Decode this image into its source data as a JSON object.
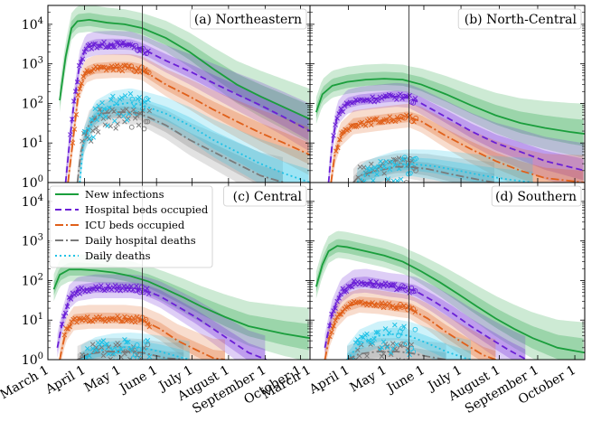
{
  "chart_data": {
    "type": "line",
    "yscale": "log",
    "ylim": [
      1,
      30000
    ],
    "xlim_days": [
      0,
      222
    ],
    "yticks": [
      {
        "v": 1,
        "label": "10",
        "exp": "0"
      },
      {
        "v": 10,
        "label": "10",
        "exp": "1"
      },
      {
        "v": 100,
        "label": "10",
        "exp": "2"
      },
      {
        "v": 1000,
        "label": "10",
        "exp": "3"
      },
      {
        "v": 10000,
        "label": "10",
        "exp": "4"
      }
    ],
    "xticks": [
      {
        "day": 0,
        "label": "March 1"
      },
      {
        "day": 31,
        "label": "April 1"
      },
      {
        "day": 61,
        "label": "May 1"
      },
      {
        "day": 92,
        "label": "June 1"
      },
      {
        "day": 122,
        "label": "July 1"
      },
      {
        "day": 153,
        "label": "August 1"
      },
      {
        "day": 184,
        "label": "September 1"
      },
      {
        "day": 214,
        "label": "October 1"
      }
    ],
    "vline_day": 80,
    "legend": [
      {
        "key": "inf",
        "label": "New infections",
        "color": "#1a9e3c",
        "dash": ""
      },
      {
        "key": "hosp",
        "label": "Hospital beds occupied",
        "color": "#6a1fd6",
        "dash": "7,4"
      },
      {
        "key": "icu",
        "label": "ICU beds occupied",
        "color": "#e0601a",
        "dash": "9,3,2,3"
      },
      {
        "key": "dhosp",
        "label": "Daily hospital deaths",
        "color": "#7a7a7a",
        "dash": "9,3,2,3"
      },
      {
        "key": "dd",
        "label": "Daily deaths",
        "color": "#1fc2e6",
        "dash": "2,3"
      }
    ],
    "panels": [
      {
        "title": "(a) Northeastern",
        "series": {
          "inf": [
            [
              10,
              120
            ],
            [
              15,
              1500
            ],
            [
              20,
              8000
            ],
            [
              25,
              12000
            ],
            [
              35,
              13000
            ],
            [
              50,
              11000
            ],
            [
              65,
              10000
            ],
            [
              80,
              8000
            ],
            [
              100,
              4500
            ],
            [
              120,
              2000
            ],
            [
              140,
              750
            ],
            [
              160,
              300
            ],
            [
              180,
              150
            ],
            [
              200,
              80
            ],
            [
              222,
              40
            ]
          ],
          "hosp": [
            [
              15,
              1
            ],
            [
              18,
              8
            ],
            [
              22,
              100
            ],
            [
              27,
              1000
            ],
            [
              32,
              2500
            ],
            [
              40,
              3000
            ],
            [
              55,
              3100
            ],
            [
              70,
              3000
            ],
            [
              80,
              2400
            ],
            [
              100,
              1200
            ],
            [
              120,
              650
            ],
            [
              140,
              330
            ],
            [
              160,
              170
            ],
            [
              180,
              90
            ],
            [
              200,
              45
            ],
            [
              222,
              20
            ]
          ],
          "icu": [
            [
              17,
              1
            ],
            [
              21,
              10
            ],
            [
              26,
              200
            ],
            [
              32,
              600
            ],
            [
              40,
              750
            ],
            [
              55,
              800
            ],
            [
              70,
              800
            ],
            [
              80,
              700
            ],
            [
              100,
              300
            ],
            [
              120,
              150
            ],
            [
              140,
              70
            ],
            [
              160,
              35
            ],
            [
              180,
              18
            ],
            [
              200,
              10
            ],
            [
              222,
              5
            ]
          ],
          "dhosp": [
            [
              25,
              1
            ],
            [
              28,
              6
            ],
            [
              35,
              30
            ],
            [
              45,
              55
            ],
            [
              55,
              60
            ],
            [
              65,
              60
            ],
            [
              75,
              58
            ],
            [
              85,
              45
            ],
            [
              100,
              28
            ],
            [
              120,
              12
            ],
            [
              140,
              6
            ],
            [
              160,
              3
            ],
            [
              180,
              1.5
            ],
            [
              200,
              1
            ]
          ],
          "dd": [
            [
              27,
              1
            ],
            [
              30,
              10
            ],
            [
              40,
              50
            ],
            [
              55,
              90
            ],
            [
              70,
              105
            ],
            [
              80,
              90
            ],
            [
              100,
              55
            ],
            [
              120,
              28
            ],
            [
              140,
              12
            ],
            [
              160,
              6
            ],
            [
              180,
              3
            ],
            [
              200,
              1.7
            ],
            [
              222,
              1
            ]
          ]
        }
      },
      {
        "title": "(b) North-Central",
        "series": {
          "inf": [
            [
              5,
              60
            ],
            [
              10,
              170
            ],
            [
              18,
              280
            ],
            [
              30,
              350
            ],
            [
              45,
              400
            ],
            [
              60,
              420
            ],
            [
              75,
              400
            ],
            [
              90,
              300
            ],
            [
              110,
              170
            ],
            [
              130,
              90
            ],
            [
              150,
              50
            ],
            [
              170,
              32
            ],
            [
              190,
              24
            ],
            [
              210,
              19
            ],
            [
              222,
              17
            ]
          ],
          "hosp": [
            [
              15,
              1
            ],
            [
              18,
              10
            ],
            [
              22,
              50
            ],
            [
              30,
              100
            ],
            [
              40,
              120
            ],
            [
              50,
              130
            ],
            [
              60,
              140
            ],
            [
              70,
              150
            ],
            [
              80,
              140
            ],
            [
              90,
              100
            ],
            [
              110,
              45
            ],
            [
              130,
              20
            ],
            [
              150,
              10
            ],
            [
              170,
              6
            ],
            [
              190,
              3.5
            ],
            [
              222,
              2
            ]
          ],
          "icu": [
            [
              17,
              1
            ],
            [
              20,
              5
            ],
            [
              25,
              15
            ],
            [
              35,
              30
            ],
            [
              50,
              35
            ],
            [
              65,
              40
            ],
            [
              80,
              45
            ],
            [
              90,
              35
            ],
            [
              110,
              15
            ],
            [
              130,
              7
            ],
            [
              150,
              3.5
            ],
            [
              170,
              2
            ],
            [
              190,
              1.3
            ],
            [
              222,
              1
            ]
          ],
          "dhosp": [
            [
              35,
              1
            ],
            [
              40,
              1.5
            ],
            [
              55,
              2
            ],
            [
              70,
              2.5
            ],
            [
              80,
              2.5
            ],
            [
              95,
              2.2
            ],
            [
              115,
              1.6
            ],
            [
              135,
              1.2
            ],
            [
              150,
              1
            ]
          ],
          "dd": [
            [
              38,
              1
            ],
            [
              45,
              1.5
            ],
            [
              55,
              2
            ],
            [
              70,
              2.8
            ],
            [
              80,
              3
            ],
            [
              100,
              2.6
            ],
            [
              120,
              2
            ],
            [
              140,
              1.5
            ],
            [
              160,
              1.2
            ],
            [
              180,
              1
            ]
          ]
        }
      },
      {
        "title": "(c) Central",
        "series": {
          "inf": [
            [
              5,
              60
            ],
            [
              10,
              140
            ],
            [
              18,
              190
            ],
            [
              28,
              190
            ],
            [
              40,
              180
            ],
            [
              55,
              160
            ],
            [
              70,
              130
            ],
            [
              85,
              95
            ],
            [
              100,
              60
            ],
            [
              115,
              37
            ],
            [
              130,
              22
            ],
            [
              150,
              12
            ],
            [
              170,
              7
            ],
            [
              200,
              4.5
            ],
            [
              222,
              3.5
            ]
          ],
          "hosp": [
            [
              8,
              2
            ],
            [
              12,
              8
            ],
            [
              18,
              35
            ],
            [
              25,
              55
            ],
            [
              40,
              65
            ],
            [
              55,
              65
            ],
            [
              70,
              65
            ],
            [
              80,
              60
            ],
            [
              95,
              40
            ],
            [
              110,
              22
            ],
            [
              125,
              12
            ],
            [
              140,
              6
            ],
            [
              155,
              3
            ],
            [
              170,
              1.5
            ],
            [
              185,
              1
            ]
          ],
          "icu": [
            [
              10,
              1
            ],
            [
              15,
              5
            ],
            [
              22,
              10
            ],
            [
              35,
              11
            ],
            [
              50,
              11
            ],
            [
              65,
              11
            ],
            [
              80,
              10
            ],
            [
              95,
              6
            ],
            [
              110,
              3
            ],
            [
              125,
              1.8
            ],
            [
              140,
              1.1
            ],
            [
              150,
              1
            ]
          ],
          "dhosp": [
            [
              25,
              1
            ],
            [
              35,
              1.4
            ],
            [
              50,
              1.6
            ],
            [
              65,
              1.6
            ],
            [
              80,
              1.5
            ],
            [
              100,
              1.1
            ],
            [
              115,
              1
            ]
          ],
          "dd": [
            [
              28,
              1
            ],
            [
              40,
              1.6
            ],
            [
              55,
              2
            ],
            [
              70,
              2.1
            ],
            [
              80,
              2
            ],
            [
              95,
              1.6
            ],
            [
              110,
              1.2
            ],
            [
              120,
              1
            ]
          ]
        }
      },
      {
        "title": "(d) Southern",
        "series": {
          "inf": [
            [
              5,
              70
            ],
            [
              10,
              250
            ],
            [
              15,
              550
            ],
            [
              22,
              750
            ],
            [
              30,
              700
            ],
            [
              45,
              550
            ],
            [
              60,
              430
            ],
            [
              75,
              300
            ],
            [
              90,
              170
            ],
            [
              105,
              90
            ],
            [
              120,
              45
            ],
            [
              135,
              22
            ],
            [
              150,
              11
            ],
            [
              165,
              6
            ],
            [
              180,
              3.5
            ],
            [
              200,
              2
            ],
            [
              222,
              1.5
            ]
          ],
          "hosp": [
            [
              12,
              2
            ],
            [
              18,
              15
            ],
            [
              25,
              50
            ],
            [
              35,
              85
            ],
            [
              45,
              90
            ],
            [
              55,
              80
            ],
            [
              65,
              70
            ],
            [
              75,
              65
            ],
            [
              85,
              55
            ],
            [
              100,
              30
            ],
            [
              115,
              15
            ],
            [
              130,
              7
            ],
            [
              145,
              3.5
            ],
            [
              160,
              1.8
            ],
            [
              175,
              1
            ]
          ],
          "icu": [
            [
              12,
              1
            ],
            [
              16,
              4
            ],
            [
              22,
              12
            ],
            [
              30,
              22
            ],
            [
              40,
              28
            ],
            [
              55,
              26
            ],
            [
              70,
              22
            ],
            [
              80,
              20
            ],
            [
              95,
              11
            ],
            [
              110,
              5
            ],
            [
              125,
              2.5
            ],
            [
              140,
              1.3
            ],
            [
              150,
              1
            ]
          ],
          "dhosp": [
            [
              30,
              1
            ],
            [
              40,
              1.4
            ],
            [
              55,
              1.6
            ],
            [
              70,
              1.6
            ],
            [
              80,
              1.5
            ],
            [
              95,
              1.2
            ],
            [
              110,
              1
            ]
          ],
          "dd": [
            [
              30,
              1
            ],
            [
              40,
              2.5
            ],
            [
              55,
              4
            ],
            [
              70,
              4.5
            ],
            [
              80,
              4
            ],
            [
              95,
              2.6
            ],
            [
              110,
              1.6
            ],
            [
              125,
              1.1
            ],
            [
              130,
              1
            ]
          ]
        }
      }
    ]
  }
}
